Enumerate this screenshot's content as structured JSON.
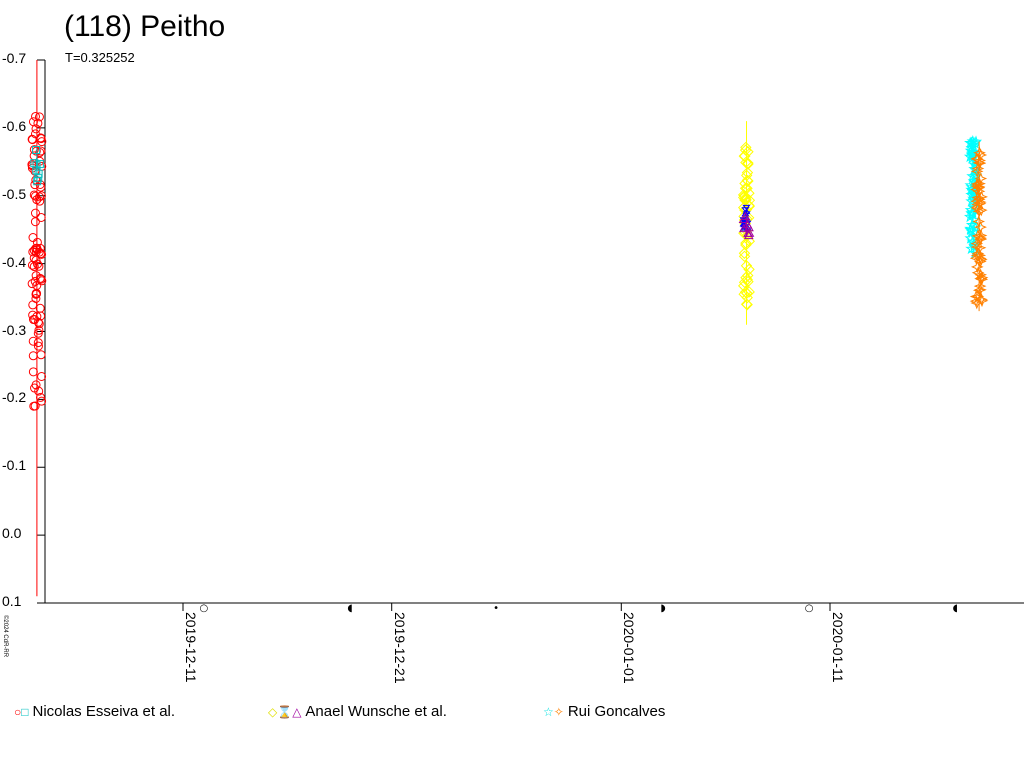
{
  "chart_data": {
    "type": "scatter",
    "title": "(118) Peitho",
    "subtitle": "T=0.325252",
    "y_axis": {
      "reversed": true,
      "range": [
        0.1,
        -0.7
      ],
      "ticks": [
        {
          "value": -0.7,
          "label": "-0.7"
        },
        {
          "value": -0.6,
          "label": "-0.6"
        },
        {
          "value": -0.5,
          "label": "-0.5"
        },
        {
          "value": -0.4,
          "label": "-0.4"
        },
        {
          "value": -0.3,
          "label": "-0.3"
        },
        {
          "value": -0.2,
          "label": "-0.2"
        },
        {
          "value": -0.1,
          "label": "-0.1"
        },
        {
          "value": 0.0,
          "label": "0.0"
        },
        {
          "value": 0.1,
          "label": "0.1"
        }
      ]
    },
    "x_axis": {
      "type": "date",
      "range": [
        "2019-12-04",
        "2020-01-19"
      ],
      "ticks": [
        "2019-12-11",
        "2019-12-21",
        "2020-01-01",
        "2020-01-11"
      ]
    },
    "phase_markers": [
      {
        "date": "2019-12-12",
        "symbol": "○"
      },
      {
        "date": "2019-12-19",
        "symbol": "◖"
      },
      {
        "date": "2019-12-26",
        "symbol": "•"
      },
      {
        "date": "2020-01-03",
        "symbol": "◗"
      },
      {
        "date": "2020-01-10",
        "symbol": "○"
      },
      {
        "date": "2020-01-17",
        "symbol": "◖"
      }
    ],
    "series": [
      {
        "name": "Nicolas Esseiva et al.",
        "marker": "circle",
        "color": "#ff0000",
        "date": "2019-12-04",
        "y_min": -0.62,
        "y_max": -0.17,
        "err_min": -0.7,
        "err_max": 0.09
      },
      {
        "name": "Nicolas Esseiva et al.",
        "marker": "square",
        "color": "#00c0c0",
        "date": "2019-12-04",
        "y_min": -0.57,
        "y_max": -0.52,
        "err_min": -0.57,
        "err_max": -0.52
      },
      {
        "name": "Anael Wunsche et al.",
        "marker": "diamond",
        "color": "#ffff00",
        "date": "2020-01-07",
        "y_min": -0.58,
        "y_max": -0.33,
        "err_min": -0.61,
        "err_max": -0.31
      },
      {
        "name": "Anael Wunsche et al.",
        "marker": "hourglass",
        "color": "#0000ff",
        "date": "2020-01-07",
        "y_min": -0.48,
        "y_max": -0.44,
        "err_min": -0.48,
        "err_max": -0.44
      },
      {
        "name": "Anael Wunsche et al.",
        "marker": "triangle",
        "color": "#a000a0",
        "date": "2020-01-07",
        "y_min": -0.47,
        "y_max": -0.44,
        "err_min": -0.47,
        "err_max": -0.44
      },
      {
        "name": "Rui Goncalves",
        "marker": "star",
        "color": "#00ffff",
        "date": "2020-01-18",
        "y_min": -0.58,
        "y_max": -0.41,
        "err_min": -0.58,
        "err_max": -0.41
      },
      {
        "name": "Rui Goncalves",
        "marker": "star4",
        "color": "#ff8000",
        "date": "2020-01-18",
        "y_min": -0.57,
        "y_max": -0.34,
        "err_min": -0.58,
        "err_max": -0.33
      }
    ],
    "legend": [
      {
        "symbols": "○□",
        "label": "Nicolas Esseiva et al.",
        "colors": [
          "#ff0000",
          "#00c0c0"
        ]
      },
      {
        "symbols": "◇⌛△",
        "label": "Anael Wunsche et al.",
        "colors": [
          "#ffff00",
          "#0000ff",
          "#a000a0"
        ]
      },
      {
        "symbols": "☆✧",
        "label": "Rui Goncalves",
        "colors": [
          "#00ffff",
          "#ff8000"
        ]
      }
    ],
    "legend_position": "bottom",
    "grid": false
  },
  "copyright": "©2024 CdR-RR"
}
